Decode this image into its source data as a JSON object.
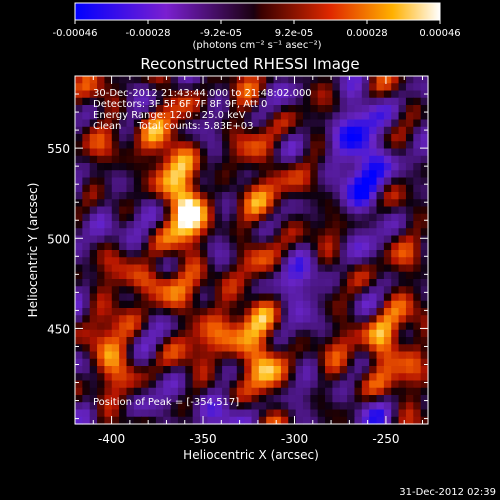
{
  "colorbar": {
    "ticks": [
      "-0.00046",
      "-0.00028",
      "-9.2e-05",
      "9.2e-05",
      "0.00028",
      "0.00046"
    ],
    "unit_label": "(photons cm⁻² s⁻¹ asec⁻²)"
  },
  "chart_data": {
    "type": "heatmap",
    "title": "Reconstructed RHESSI Image",
    "xlabel": "Heliocentric X (arcsec)",
    "ylabel": "Heliocentric Y (arcsec)",
    "xlim": [
      -420,
      -227
    ],
    "ylim": [
      397,
      590
    ],
    "xticks": [
      -400,
      -350,
      -300,
      -250
    ],
    "yticks": [
      450,
      500,
      550
    ],
    "zlim": [
      -0.00046,
      0.00046
    ],
    "colormap": "rhessi-hot (blue-purple-black-red-yellow-white)",
    "peak_position": [
      -354,
      517
    ]
  },
  "annotations": {
    "time": "30-Dec-2012 21:43:44.000 to 21:48:02.000",
    "detectors": "Detectors: 3F 5F 6F 7F 8F 9F, Att 0",
    "energy": "Energy Range: 12.0 - 25.0 keV",
    "clean": "Clean     Total counts: 5.83E+03",
    "peak": "Position of Peak = [-354,517]"
  },
  "footer": {
    "timestamp": "31-Dec-2012 02:39"
  }
}
